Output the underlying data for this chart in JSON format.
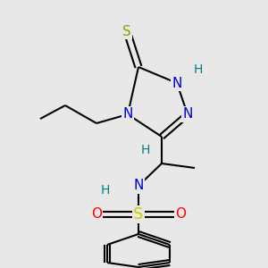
{
  "background_color": "#e8e8e8",
  "figsize": [
    3.0,
    3.0
  ],
  "dpi": 100,
  "bond_lw": 1.5,
  "bond_color": "#000000",
  "colors": {
    "S_thione": "#999900",
    "N": "#0000dd",
    "H": "#008080",
    "S_sulfo": "#cccc00",
    "O": "#ff0000",
    "C": "#000000"
  }
}
